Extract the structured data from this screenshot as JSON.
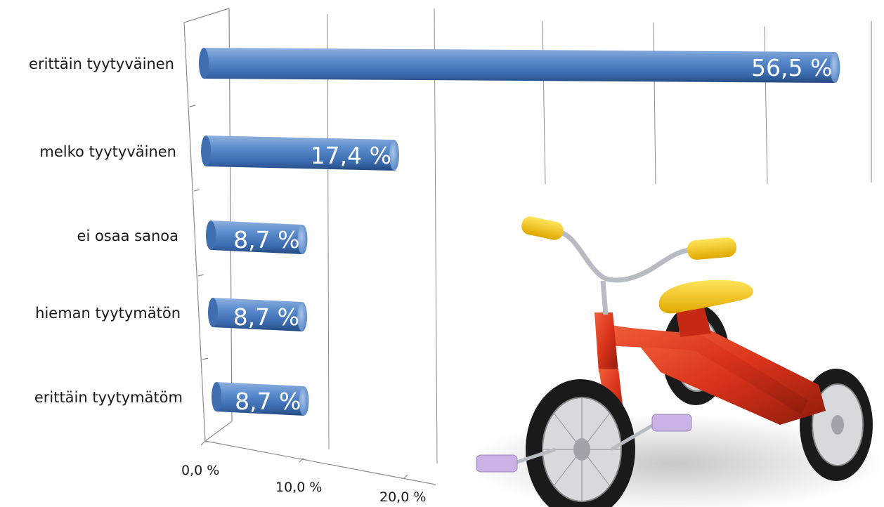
{
  "chart_data": {
    "type": "bar",
    "orientation": "horizontal",
    "categories": [
      "erittäin tyytyväinen",
      "melko tyytyväinen",
      "ei osaa sanoa",
      "hieman tyytymätön",
      "erittäin tyytymätöm"
    ],
    "values": [
      56.5,
      17.4,
      8.7,
      8.7,
      8.7
    ],
    "data_labels": [
      "56,5 %",
      "17,4 %",
      "8,7 %",
      "8,7 %",
      "8,7 %"
    ],
    "x_ticks": [
      "0,0 %",
      "10,0 %",
      "20,0 %"
    ],
    "xlim": [
      0,
      60
    ],
    "grid": true,
    "legend": "none",
    "style": "3d-cylinder",
    "bar_color": "#4a7ebb",
    "label_color": "#ffffff",
    "title": "",
    "xlabel": "",
    "ylabel": ""
  },
  "illustration": {
    "icon": "tricycle-icon",
    "colors": {
      "frame": "#d9321a",
      "seat": "#f2c200",
      "grips": "#f2c200",
      "pedals": "#c9b3e6",
      "tire": "#1a1a1a",
      "chrome": "#b8bcc2"
    }
  }
}
